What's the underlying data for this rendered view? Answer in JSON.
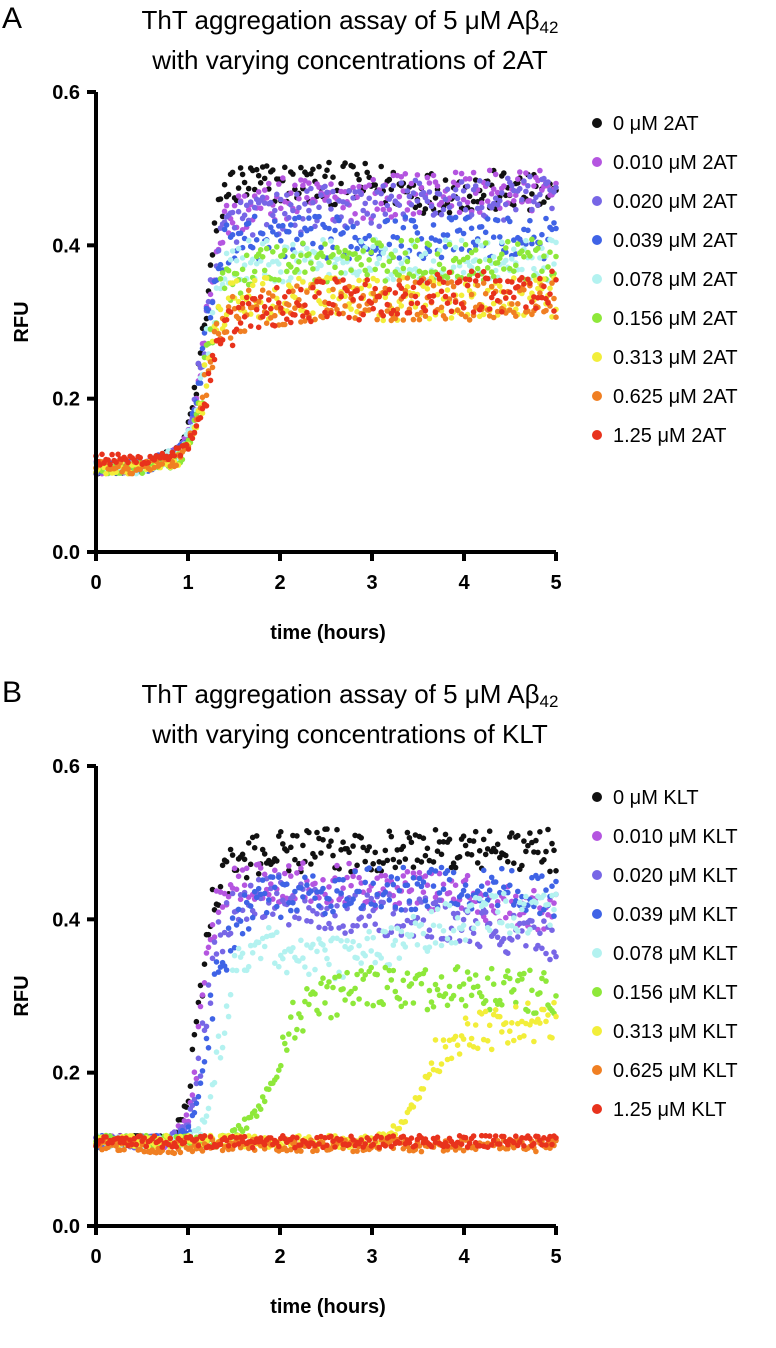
{
  "panels": [
    {
      "letter": "A",
      "title_line1": "ThT aggregation assay of 5 μM Aβ",
      "title_sub": "42",
      "title_line2": "with varying concentrations of 2AT"
    },
    {
      "letter": "B",
      "title_line1": "ThT aggregation assay of 5 μM Aβ",
      "title_sub": "42",
      "title_line2": "with varying concentrations of KLT"
    }
  ],
  "chart_data": [
    {
      "type": "scatter",
      "title": "ThT aggregation assay of 5 μM Aβ42 with varying concentrations of 2AT",
      "xlabel": "time (hours)",
      "ylabel": "RFU",
      "xlim": [
        0,
        5
      ],
      "ylim": [
        0,
        0.6
      ],
      "xticks": [
        "0",
        "1",
        "2",
        "3",
        "4",
        "5"
      ],
      "yticks": [
        "0.0",
        "0.2",
        "0.4",
        "0.6"
      ],
      "legend_position": "right",
      "x": [
        0,
        0.5,
        0.9,
        1.0,
        1.1,
        1.2,
        1.3,
        1.4,
        1.5,
        1.7,
        2.0,
        2.5,
        3.0,
        3.5,
        4.0,
        4.5,
        5.0
      ],
      "series": [
        {
          "name": "0 μM 2AT",
          "color": "#111111",
          "values": [
            0.11,
            0.11,
            0.13,
            0.16,
            0.22,
            0.32,
            0.42,
            0.47,
            0.48,
            0.48,
            0.48,
            0.48,
            0.48,
            0.47,
            0.47,
            0.47,
            0.46
          ]
        },
        {
          "name": "0.010 μM 2AT",
          "color": "#b455e0",
          "values": [
            0.11,
            0.11,
            0.13,
            0.15,
            0.21,
            0.3,
            0.39,
            0.43,
            0.44,
            0.45,
            0.46,
            0.46,
            0.46,
            0.47,
            0.47,
            0.47,
            0.47
          ]
        },
        {
          "name": "0.020 μM 2AT",
          "color": "#7766e6",
          "values": [
            0.11,
            0.11,
            0.13,
            0.15,
            0.21,
            0.3,
            0.38,
            0.42,
            0.43,
            0.44,
            0.44,
            0.45,
            0.45,
            0.46,
            0.46,
            0.46,
            0.47
          ]
        },
        {
          "name": "0.039 μM 2AT",
          "color": "#3f63e6",
          "values": [
            0.11,
            0.11,
            0.13,
            0.15,
            0.2,
            0.29,
            0.36,
            0.4,
            0.41,
            0.41,
            0.41,
            0.41,
            0.41,
            0.41,
            0.41,
            0.41,
            0.41
          ]
        },
        {
          "name": "0.078 μM 2AT",
          "color": "#b3f2f0",
          "values": [
            0.11,
            0.11,
            0.13,
            0.15,
            0.19,
            0.27,
            0.33,
            0.37,
            0.38,
            0.38,
            0.38,
            0.38,
            0.38,
            0.38,
            0.38,
            0.38,
            0.38
          ]
        },
        {
          "name": "0.156 μM 2AT",
          "color": "#8ee83a",
          "values": [
            0.11,
            0.11,
            0.12,
            0.14,
            0.18,
            0.25,
            0.31,
            0.35,
            0.36,
            0.37,
            0.38,
            0.38,
            0.38,
            0.38,
            0.38,
            0.38,
            0.38
          ]
        },
        {
          "name": "0.313 μM 2AT",
          "color": "#f2ee3a",
          "values": [
            0.11,
            0.11,
            0.12,
            0.14,
            0.17,
            0.23,
            0.29,
            0.32,
            0.33,
            0.33,
            0.33,
            0.33,
            0.33,
            0.33,
            0.33,
            0.33,
            0.33
          ]
        },
        {
          "name": "0.625 μM 2AT",
          "color": "#f07f22",
          "values": [
            0.11,
            0.11,
            0.12,
            0.14,
            0.17,
            0.22,
            0.27,
            0.3,
            0.31,
            0.32,
            0.32,
            0.33,
            0.33,
            0.33,
            0.33,
            0.33,
            0.33
          ]
        },
        {
          "name": "1.25 μM 2AT",
          "color": "#e8321c",
          "values": [
            0.12,
            0.12,
            0.13,
            0.14,
            0.16,
            0.2,
            0.25,
            0.28,
            0.3,
            0.31,
            0.32,
            0.33,
            0.33,
            0.33,
            0.34,
            0.34,
            0.34
          ]
        }
      ]
    },
    {
      "type": "scatter",
      "title": "ThT aggregation assay of 5 μM Aβ42 with varying concentrations of KLT",
      "xlabel": "time (hours)",
      "ylabel": "RFU",
      "xlim": [
        0,
        5
      ],
      "ylim": [
        0,
        0.6
      ],
      "xticks": [
        "0",
        "1",
        "2",
        "3",
        "4",
        "5"
      ],
      "yticks": [
        "0.0",
        "0.2",
        "0.4",
        "0.6"
      ],
      "legend_position": "right",
      "x": [
        0,
        0.8,
        1.0,
        1.1,
        1.2,
        1.3,
        1.5,
        1.7,
        1.9,
        2.0,
        2.1,
        2.3,
        2.6,
        3.0,
        3.3,
        3.5,
        3.7,
        4.0,
        4.5,
        5.0
      ],
      "series": [
        {
          "name": "0 μM KLT",
          "color": "#111111",
          "values": [
            0.11,
            0.11,
            0.16,
            0.26,
            0.37,
            0.44,
            0.47,
            0.48,
            0.49,
            0.49,
            0.49,
            0.49,
            0.49,
            0.49,
            0.49,
            0.49,
            0.49,
            0.49,
            0.49,
            0.49
          ]
        },
        {
          "name": "0.010 μM KLT",
          "color": "#b455e0",
          "values": [
            0.11,
            0.11,
            0.14,
            0.22,
            0.33,
            0.41,
            0.45,
            0.45,
            0.45,
            0.45,
            0.45,
            0.45,
            0.45,
            0.44,
            0.44,
            0.44,
            0.44,
            0.43,
            0.42,
            0.41
          ]
        },
        {
          "name": "0.020 μM KLT",
          "color": "#7766e6",
          "values": [
            0.11,
            0.11,
            0.13,
            0.19,
            0.28,
            0.36,
            0.42,
            0.43,
            0.43,
            0.43,
            0.42,
            0.42,
            0.41,
            0.41,
            0.4,
            0.4,
            0.4,
            0.39,
            0.38,
            0.37
          ]
        },
        {
          "name": "0.039 μM KLT",
          "color": "#3f63e6",
          "values": [
            0.11,
            0.11,
            0.12,
            0.16,
            0.24,
            0.32,
            0.39,
            0.42,
            0.43,
            0.43,
            0.43,
            0.43,
            0.43,
            0.44,
            0.44,
            0.44,
            0.44,
            0.44,
            0.44,
            0.43
          ]
        },
        {
          "name": "0.078 μM KLT",
          "color": "#b3f2f0",
          "values": [
            0.11,
            0.11,
            0.11,
            0.12,
            0.14,
            0.2,
            0.33,
            0.37,
            0.37,
            0.36,
            0.35,
            0.35,
            0.35,
            0.36,
            0.37,
            0.38,
            0.39,
            0.4,
            0.41,
            0.41
          ]
        },
        {
          "name": "0.156 μM KLT",
          "color": "#8ee83a",
          "values": [
            0.11,
            0.11,
            0.11,
            0.11,
            0.11,
            0.11,
            0.12,
            0.14,
            0.18,
            0.22,
            0.26,
            0.29,
            0.3,
            0.31,
            0.31,
            0.31,
            0.31,
            0.31,
            0.31,
            0.3
          ]
        },
        {
          "name": "0.313 μM KLT",
          "color": "#f2ee3a",
          "values": [
            0.11,
            0.11,
            0.11,
            0.11,
            0.11,
            0.11,
            0.11,
            0.11,
            0.11,
            0.11,
            0.11,
            0.11,
            0.11,
            0.11,
            0.13,
            0.17,
            0.22,
            0.25,
            0.26,
            0.27
          ]
        },
        {
          "name": "0.625 μM KLT",
          "color": "#f07f22",
          "values": [
            0.105,
            0.1,
            0.105,
            0.105,
            0.105,
            0.105,
            0.105,
            0.105,
            0.105,
            0.105,
            0.105,
            0.105,
            0.105,
            0.105,
            0.105,
            0.105,
            0.105,
            0.105,
            0.105,
            0.105
          ]
        },
        {
          "name": "1.25 μM KLT",
          "color": "#e8321c",
          "values": [
            0.11,
            0.11,
            0.11,
            0.11,
            0.11,
            0.11,
            0.11,
            0.11,
            0.11,
            0.11,
            0.11,
            0.11,
            0.11,
            0.11,
            0.11,
            0.11,
            0.11,
            0.11,
            0.11,
            0.11
          ]
        }
      ]
    }
  ]
}
